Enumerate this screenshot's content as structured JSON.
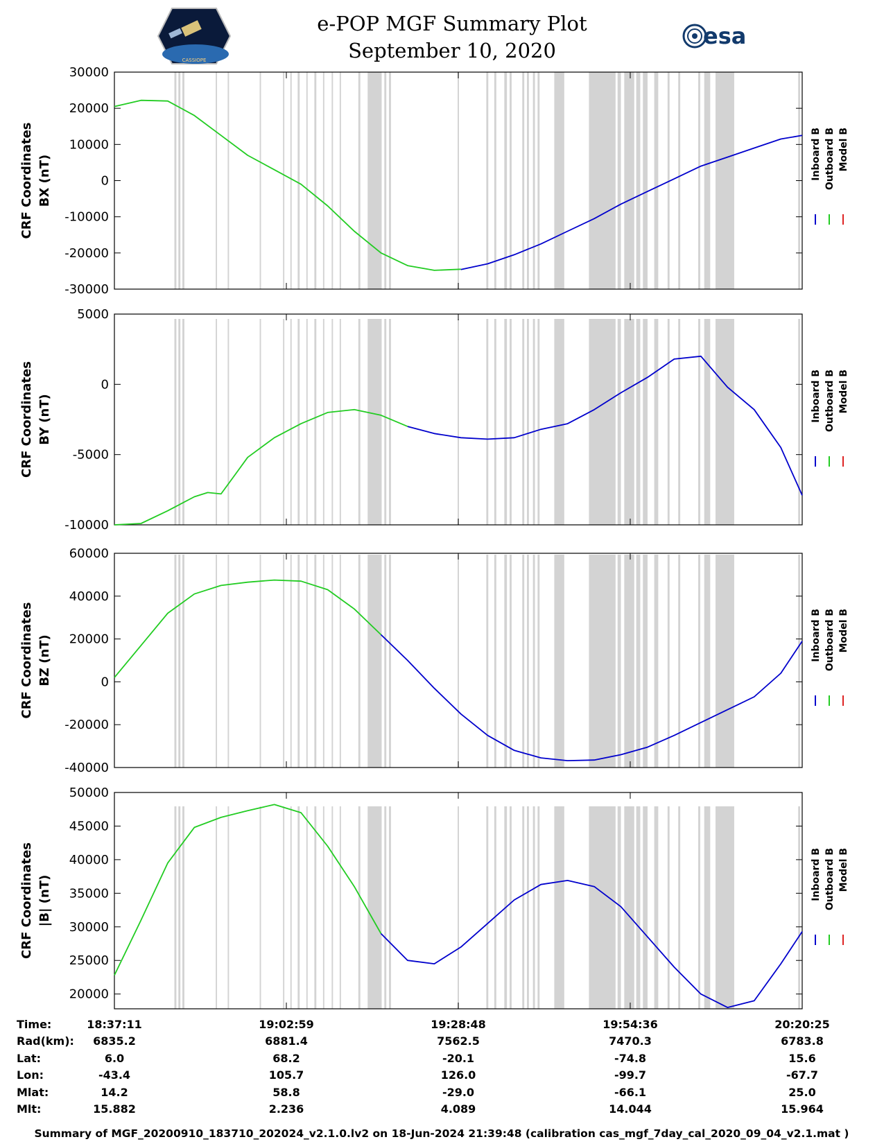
{
  "header": {
    "title": "e-POP MGF Summary Plot",
    "date": "September 10, 2020",
    "logo_left_text": "CASSIOPE",
    "logo_right_text": "esa"
  },
  "legend": [
    "Inboard B",
    "Outboard B",
    "Model B"
  ],
  "colors": {
    "inboard": "#0000cc",
    "outboard": "#22cc22",
    "model": "#dd2222",
    "shade": "#d3d3d3"
  },
  "chart_data": [
    {
      "type": "line",
      "ylabel": [
        "CRF Coordinates",
        "BX (nT)"
      ],
      "ylim": [
        -30000,
        30000
      ],
      "yticks": [
        -30000,
        -20000,
        -10000,
        0,
        10000,
        20000,
        30000
      ],
      "ytick_labels": [
        "-30000",
        "-20000",
        "-10000",
        "0",
        "10000",
        "20000",
        "30000"
      ],
      "x": [
        0,
        4,
        8,
        12,
        16,
        20,
        24,
        28,
        32,
        36,
        40,
        44,
        48,
        52,
        56,
        60,
        64,
        68,
        72,
        76,
        80,
        84,
        88,
        92,
        96,
        100,
        103.2
      ],
      "series": [
        {
          "name": "Outboard B",
          "values": [
            20500,
            22200,
            22000,
            18000,
            12500,
            7000,
            3000,
            -1000,
            -7000,
            -14000,
            -20000,
            -23500,
            -24800,
            -24500,
            null,
            null,
            null,
            null,
            null,
            null,
            null,
            null,
            null,
            null,
            null,
            null,
            null
          ]
        },
        {
          "name": "Inboard B",
          "values": [
            null,
            null,
            null,
            null,
            null,
            null,
            null,
            null,
            null,
            null,
            null,
            null,
            null,
            -24600,
            -23000,
            -20500,
            -17500,
            -14000,
            -10500,
            -6500,
            -3000,
            500,
            4000,
            6500,
            9000,
            11500,
            12500
          ]
        }
      ]
    },
    {
      "type": "line",
      "ylabel": [
        "CRF Coordinates",
        "BY (nT)"
      ],
      "ylim": [
        -10000,
        5000
      ],
      "yticks": [
        -10000,
        -5000,
        0,
        5000
      ],
      "ytick_labels": [
        "-10000",
        "-5000",
        "0",
        "5000"
      ],
      "x": [
        0,
        4,
        8,
        10,
        12,
        14,
        16,
        18,
        20,
        24,
        28,
        32,
        36,
        40,
        44,
        48,
        52,
        56,
        60,
        64,
        68,
        72,
        76,
        80,
        84,
        88,
        92,
        96,
        100,
        103.2
      ],
      "series": [
        {
          "name": "Outboard B",
          "values": [
            -10000,
            -9900,
            -9000,
            -8500,
            -8000,
            -7700,
            -7800,
            -6500,
            -5200,
            -3800,
            -2800,
            -2000,
            -1800,
            -2200,
            -3000,
            null,
            null,
            null,
            null,
            null,
            null,
            null,
            null,
            null,
            null,
            null,
            null,
            null,
            null,
            null
          ]
        },
        {
          "name": "Inboard B",
          "values": [
            null,
            null,
            null,
            null,
            null,
            null,
            null,
            null,
            null,
            null,
            null,
            null,
            null,
            null,
            -3000,
            -3500,
            -3800,
            -3900,
            -3800,
            -3200,
            -2800,
            -1800,
            -600,
            500,
            1800,
            2000,
            -200,
            -1800,
            -4500,
            -7900
          ]
        }
      ]
    },
    {
      "type": "line",
      "ylabel": [
        "CRF Coordinates",
        "BZ (nT)"
      ],
      "ylim": [
        -40000,
        60000
      ],
      "yticks": [
        -40000,
        -20000,
        0,
        20000,
        40000,
        60000
      ],
      "ytick_labels": [
        "-40000",
        "-20000",
        "0",
        "20000",
        "40000",
        "60000"
      ],
      "x": [
        0,
        4,
        8,
        12,
        16,
        20,
        24,
        28,
        32,
        36,
        40,
        44,
        48,
        52,
        56,
        60,
        64,
        68,
        72,
        76,
        80,
        84,
        88,
        92,
        96,
        100,
        103.2
      ],
      "series": [
        {
          "name": "Outboard B",
          "values": [
            2000,
            17000,
            32000,
            41000,
            45000,
            46500,
            47500,
            47000,
            43000,
            34000,
            22000,
            null,
            null,
            null,
            null,
            null,
            null,
            null,
            null,
            null,
            null,
            null,
            null,
            null,
            null,
            null,
            null
          ]
        },
        {
          "name": "Inboard B",
          "values": [
            null,
            null,
            null,
            null,
            null,
            null,
            null,
            null,
            null,
            null,
            22000,
            10000,
            -3000,
            -15000,
            -25000,
            -32000,
            -35500,
            -36800,
            -36500,
            -34000,
            -30500,
            -25000,
            -19000,
            -13000,
            -7000,
            4000,
            19000
          ]
        }
      ]
    },
    {
      "type": "line",
      "ylabel": [
        "CRF Coordinates",
        "|B| (nT)"
      ],
      "ylim": [
        17800,
        50000
      ],
      "yticks": [
        20000,
        25000,
        30000,
        35000,
        40000,
        45000,
        50000
      ],
      "ytick_labels": [
        "20000",
        "25000",
        "30000",
        "35000",
        "40000",
        "45000",
        "50000"
      ],
      "x": [
        0,
        4,
        8,
        12,
        16,
        20,
        24,
        28,
        32,
        36,
        40,
        44,
        48,
        52,
        56,
        60,
        64,
        68,
        72,
        76,
        80,
        84,
        88,
        92,
        96,
        100,
        103.2
      ],
      "series": [
        {
          "name": "Outboard B",
          "values": [
            22800,
            31000,
            39500,
            44800,
            46300,
            47300,
            48200,
            47000,
            42000,
            36000,
            29000,
            null,
            null,
            null,
            null,
            null,
            null,
            null,
            null,
            null,
            null,
            null,
            null,
            null,
            null,
            null,
            null
          ]
        },
        {
          "name": "Inboard B",
          "values": [
            null,
            null,
            null,
            null,
            null,
            null,
            null,
            null,
            null,
            null,
            29000,
            25000,
            24500,
            27000,
            30500,
            34000,
            36300,
            36900,
            36000,
            33000,
            28500,
            24000,
            20000,
            18000,
            19000,
            24500,
            29300
          ]
        }
      ]
    }
  ],
  "time_axis": {
    "xlim": [
      0,
      103.2
    ],
    "tick_positions": [
      0,
      25.8,
      51.6,
      77.4,
      103.2
    ],
    "shade_intervals": [
      [
        9.0,
        9.3
      ],
      [
        9.6,
        9.9
      ],
      [
        10.2,
        10.5
      ],
      [
        15.2,
        15.4
      ],
      [
        17.0,
        17.2
      ],
      [
        21.8,
        22.0
      ],
      [
        25.3,
        25.5
      ],
      [
        26.4,
        26.6
      ],
      [
        27.5,
        27.8
      ],
      [
        28.8,
        29.0
      ],
      [
        30.0,
        30.3
      ],
      [
        31.3,
        31.5
      ],
      [
        32.6,
        32.8
      ],
      [
        33.8,
        34.0
      ],
      [
        36.6,
        36.9
      ],
      [
        38.0,
        40.1
      ],
      [
        40.5,
        40.8
      ],
      [
        41.2,
        41.5
      ],
      [
        51.5,
        51.7
      ],
      [
        55.8,
        56.1
      ],
      [
        57.0,
        57.3
      ],
      [
        58.5,
        58.9
      ],
      [
        59.3,
        59.6
      ],
      [
        61.2,
        61.5
      ],
      [
        61.9,
        62.2
      ],
      [
        62.8,
        63.1
      ],
      [
        63.5,
        63.8
      ],
      [
        66.0,
        67.5
      ],
      [
        71.2,
        75.2
      ],
      [
        75.5,
        76.0
      ],
      [
        76.5,
        78.0
      ],
      [
        78.3,
        78.9
      ],
      [
        79.3,
        80.0
      ],
      [
        81.0,
        81.6
      ],
      [
        83.0,
        83.3
      ],
      [
        84.6,
        84.9
      ],
      [
        87.6,
        87.9
      ],
      [
        88.5,
        89.4
      ],
      [
        90.2,
        93.0
      ],
      [
        102.6,
        102.9
      ]
    ]
  },
  "info_table": {
    "row_labels": [
      "Time:",
      "Rad(km):",
      "Lat:",
      "Lon:",
      "Mlat:",
      "Mlt:"
    ],
    "columns": [
      [
        "18:37:11",
        "6835.2",
        "6.0",
        "-43.4",
        "14.2",
        "15.882"
      ],
      [
        "19:02:59",
        "6881.4",
        "68.2",
        "105.7",
        "58.8",
        "2.236"
      ],
      [
        "19:28:48",
        "7562.5",
        "-20.1",
        "126.0",
        "-29.0",
        "4.089"
      ],
      [
        "19:54:36",
        "7470.3",
        "-74.8",
        "-99.7",
        "-66.1",
        "14.044"
      ],
      [
        "20:20:25",
        "6783.8",
        "15.6",
        "-67.7",
        "25.0",
        "15.964"
      ]
    ]
  },
  "footer": "Summary of MGF_20200910_183710_202024_v2.1.0.lv2 on 18-Jun-2024 21:39:48 (calibration cas_mgf_7day_cal_2020_09_04_v2.1.mat )"
}
